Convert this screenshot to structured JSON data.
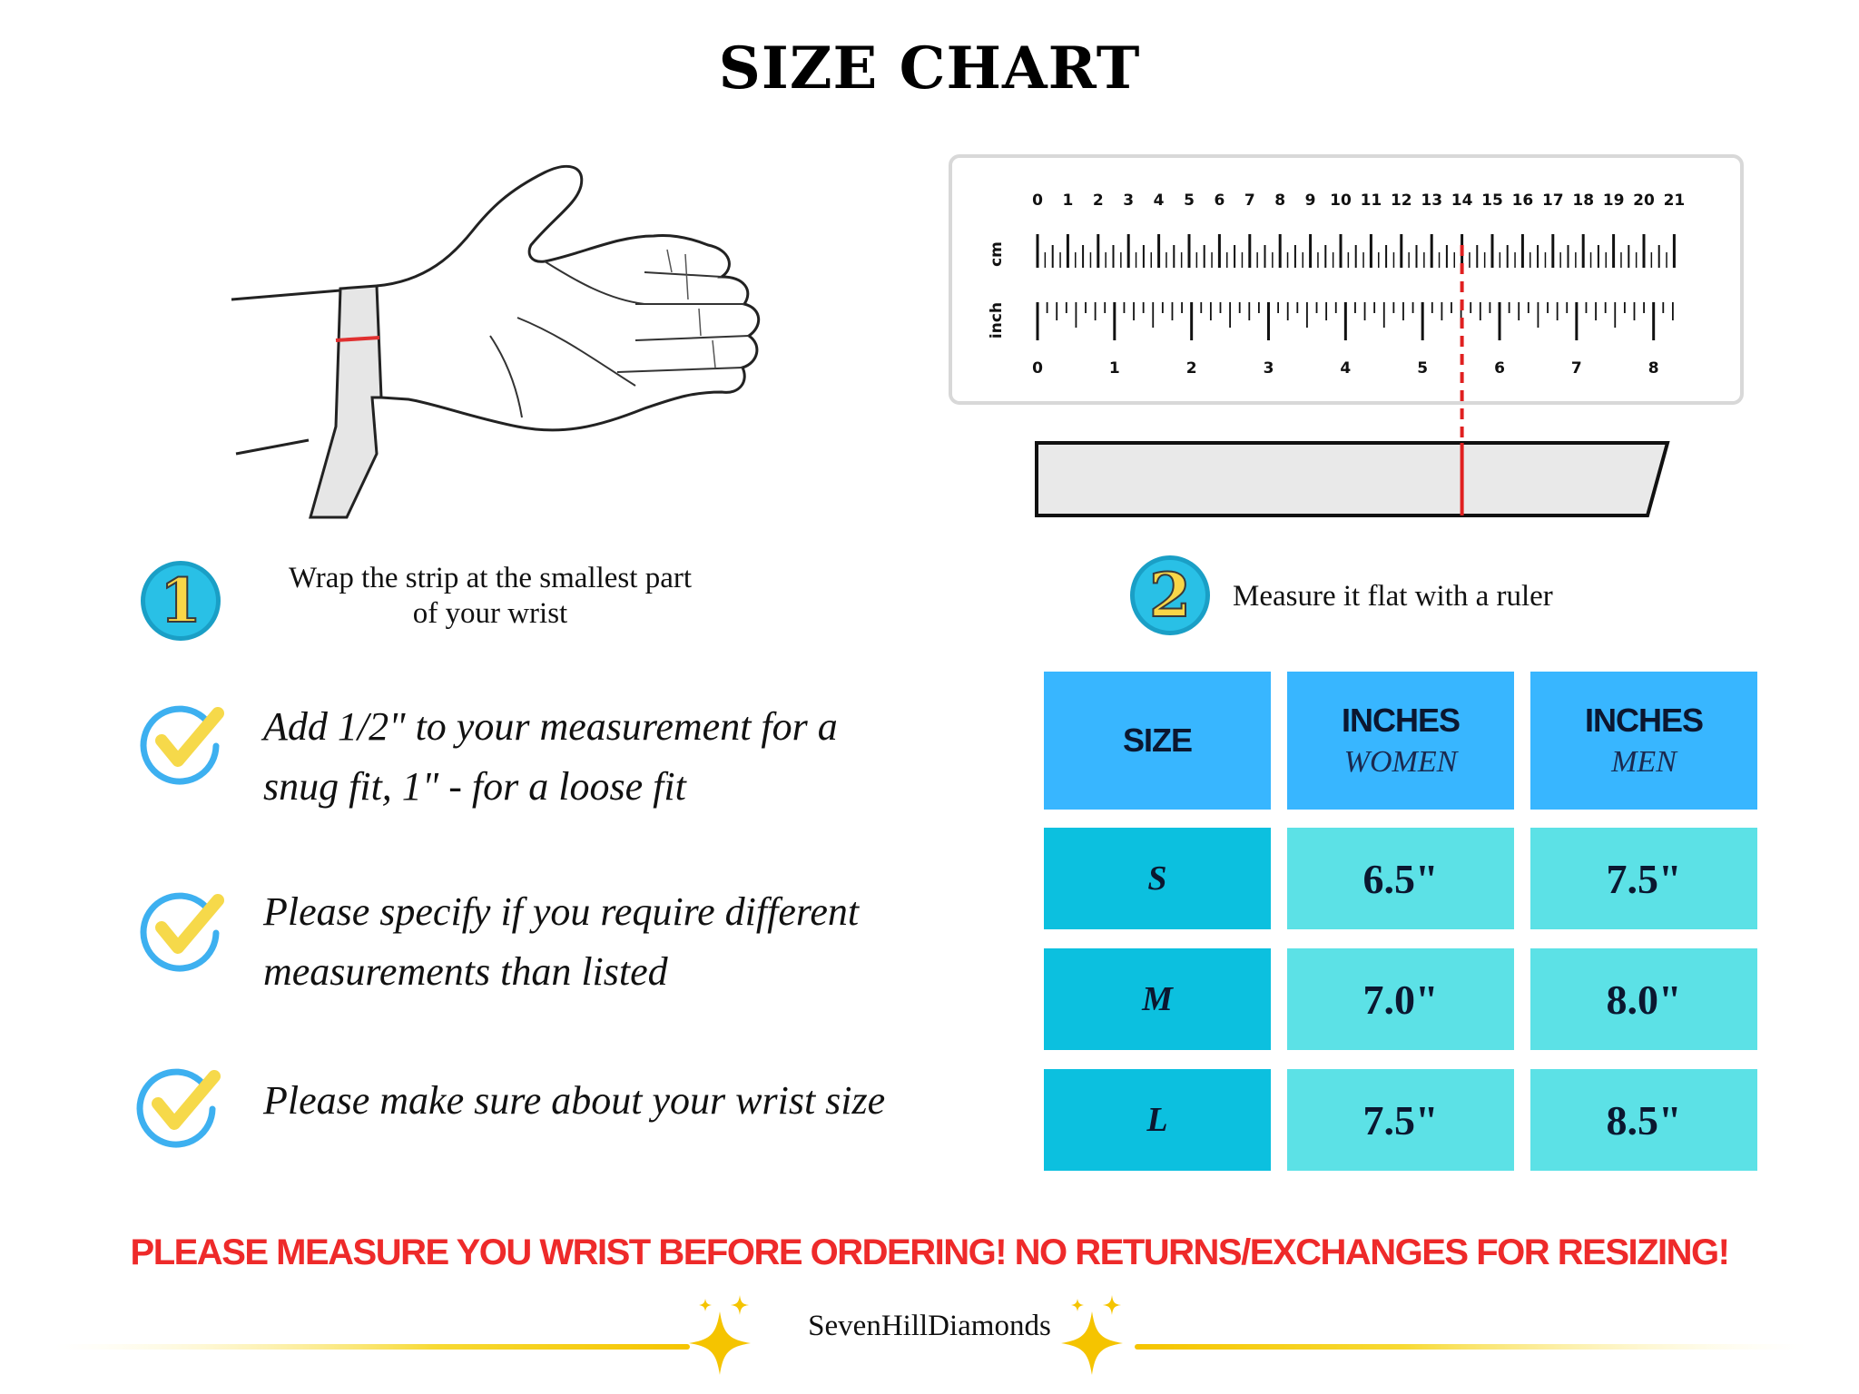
{
  "title": "SIZE CHART",
  "steps": [
    {
      "number": "1",
      "text_line1": "Wrap the strip at the smallest part",
      "text_line2": "of your wrist"
    },
    {
      "number": "2",
      "text": "Measure it flat with a ruler"
    }
  ],
  "ruler": {
    "cm_label": "cm",
    "inch_label": "inch",
    "cm_numbers": [
      "0",
      "1",
      "2",
      "3",
      "4",
      "5",
      "6",
      "7",
      "8",
      "9",
      "10",
      "11",
      "12",
      "13",
      "14",
      "15",
      "16",
      "17",
      "18",
      "19",
      "20",
      "21"
    ],
    "inch_numbers": [
      "0",
      "1",
      "2",
      "3",
      "4",
      "5",
      "6",
      "7",
      "8"
    ],
    "measured_cm": 14.0,
    "marker_color": "#e02020"
  },
  "tips": [
    {
      "line1": "Add 1/2\" to your measurement for a",
      "line2": "snug fit, 1\" - for a loose fit"
    },
    {
      "line1": "Please specify if you require different",
      "line2": "measurements than listed"
    },
    {
      "line1": "Please make sure about your wrist size"
    }
  ],
  "table": {
    "headers": {
      "size": "SIZE",
      "women_main": "INCHES",
      "women_sub": "WOMEN",
      "men_main": "INCHES",
      "men_sub": "MEN"
    },
    "rows": [
      {
        "size": "S",
        "women": "6.5\"",
        "men": "7.5\""
      },
      {
        "size": "M",
        "women": "7.0\"",
        "men": "8.0\""
      },
      {
        "size": "L",
        "women": "7.5\"",
        "men": "8.5\""
      }
    ]
  },
  "warning": "PLEASE MEASURE YOU WRIST BEFORE ORDERING! NO RETURNS/EXCHANGES FOR RESIZING!",
  "brand": "SevenHillDiamonds",
  "colors": {
    "header_cell": "#38b6ff",
    "size_cell": "#0cc0df",
    "value_cell": "#5ce1e6",
    "warning": "#ee2a2a",
    "check_circle": "#3db0f0",
    "check_mark": "#f6d94a",
    "sparkle": "#f5c400"
  },
  "icons": [
    "hand-illustration",
    "check-icon",
    "sparkle-icon"
  ]
}
